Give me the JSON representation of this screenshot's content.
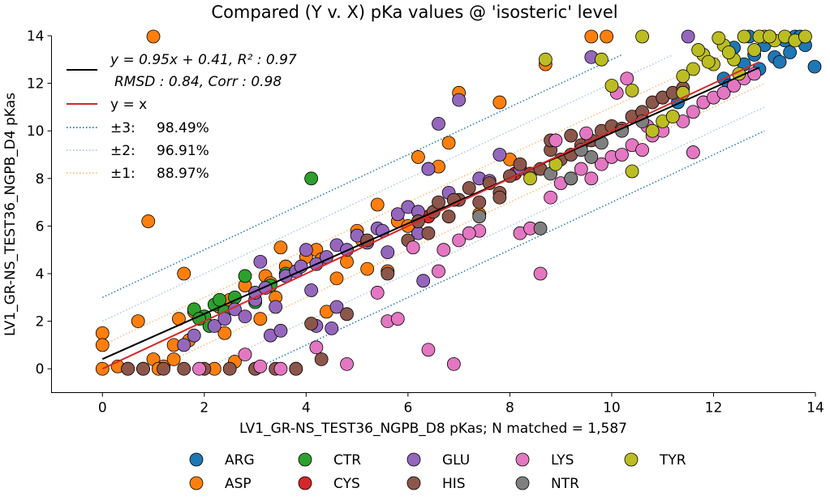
{
  "chart_data": {
    "type": "scatter",
    "title": "Compared (Y v. X) pKa values @ 'isosteric' level",
    "xlabel": "LV1_GR-NS_TEST36_NGPB_D8 pKas; N matched = 1,587",
    "ylabel": "LV1_GR-NS_TEST36_NGPB_D4 pKas",
    "xlim": [
      -1,
      14
    ],
    "ylim": [
      -1,
      14
    ],
    "xticks": [
      0,
      2,
      4,
      6,
      8,
      10,
      12,
      14
    ],
    "yticks": [
      0,
      2,
      4,
      6,
      8,
      10,
      12,
      14
    ],
    "fit_line": {
      "slope": 0.95,
      "intercept": 0.41,
      "x_range": [
        0,
        12.9
      ],
      "color": "#000000"
    },
    "identity_line": {
      "label": "y = x",
      "x_range": [
        0,
        12.9
      ],
      "color": "#d62728"
    },
    "bands": [
      {
        "label": "±3:",
        "percent": "98.49%",
        "offset": 3,
        "color": "#1f77b4"
      },
      {
        "label": "±2:",
        "percent": "96.91%",
        "offset": 2,
        "color": "#aec7e8"
      },
      {
        "label": "±1:",
        "percent": "88.97%",
        "offset": 1,
        "color": "#ffbb78"
      }
    ],
    "legend_stats": {
      "fit_line1": "y = 0.95x + 0.41, R² : 0.97",
      "fit_line2": "RMSD : 0.84, Corr : 0.98",
      "identity": "y = x"
    },
    "series": [
      {
        "name": "ARG",
        "color": "#1f77b4",
        "points": [
          [
            12.6,
            12.8
          ],
          [
            12.8,
            13.2
          ],
          [
            13.0,
            13.6
          ],
          [
            13.2,
            13.1
          ],
          [
            13.4,
            13.8
          ],
          [
            13.6,
            14.0
          ],
          [
            13.8,
            13.6
          ],
          [
            14.0,
            12.7
          ],
          [
            12.2,
            12.2
          ],
          [
            11.8,
            11.2
          ],
          [
            12.4,
            13.5
          ],
          [
            13.1,
            14.0
          ],
          [
            12.9,
            12.6
          ],
          [
            13.5,
            13.3
          ],
          [
            13.7,
            14.0
          ],
          [
            12.3,
            11.9
          ],
          [
            13.3,
            12.9
          ],
          [
            11.3,
            11.2
          ],
          [
            12.7,
            14.0
          ]
        ]
      },
      {
        "name": "ASP",
        "color": "#ff7f0e",
        "points": [
          [
            0,
            0
          ],
          [
            0,
            1.5
          ],
          [
            0,
            1.0
          ],
          [
            0.3,
            0.1
          ],
          [
            0.7,
            2.0
          ],
          [
            0.8,
            0
          ],
          [
            1.0,
            14.0
          ],
          [
            1.0,
            0.4
          ],
          [
            1.2,
            0.1
          ],
          [
            1.4,
            1.0
          ],
          [
            1.4,
            0.4
          ],
          [
            1.5,
            2.1
          ],
          [
            1.6,
            4.0
          ],
          [
            1.7,
            1.2
          ],
          [
            1.8,
            2.4
          ],
          [
            2.0,
            2.2
          ],
          [
            2.2,
            0
          ],
          [
            2.3,
            2.6
          ],
          [
            2.5,
            2.9
          ],
          [
            2.6,
            0.3
          ],
          [
            2.8,
            3.5
          ],
          [
            3.0,
            0
          ],
          [
            3.2,
            3.9
          ],
          [
            3.4,
            3.0
          ],
          [
            3.5,
            5.1
          ],
          [
            3.6,
            4.3
          ],
          [
            3.8,
            0
          ],
          [
            4.0,
            4.7
          ],
          [
            4.2,
            5.0
          ],
          [
            4.4,
            2.4
          ],
          [
            4.6,
            3.8
          ],
          [
            4.8,
            4.5
          ],
          [
            5.0,
            5.8
          ],
          [
            5.2,
            4.2
          ],
          [
            5.4,
            6.9
          ],
          [
            5.6,
            4.1
          ],
          [
            5.8,
            6.2
          ],
          [
            6.0,
            6.0
          ],
          [
            6.2,
            8.9
          ],
          [
            6.4,
            8.4
          ],
          [
            6.6,
            8.5
          ],
          [
            6.8,
            9.5
          ],
          [
            7.0,
            11.6
          ],
          [
            7.4,
            6.5
          ],
          [
            7.8,
            11.2
          ],
          [
            8.0,
            8.8
          ],
          [
            8.7,
            12.8
          ],
          [
            9.6,
            14.0
          ],
          [
            9.9,
            14.0
          ],
          [
            2.4,
            1.5
          ],
          [
            3.1,
            2.1
          ],
          [
            1.1,
            0
          ],
          [
            0.9,
            6.2
          ],
          [
            4.3,
            4.6
          ],
          [
            5.1,
            5.4
          ],
          [
            3.3,
            3.6
          ]
        ]
      },
      {
        "name": "CTR",
        "color": "#2ca02c",
        "points": [
          [
            0.5,
            0
          ],
          [
            1.8,
            2.5
          ],
          [
            2.0,
            2.2
          ],
          [
            2.2,
            2.7
          ],
          [
            2.4,
            2.4
          ],
          [
            2.6,
            3.0
          ],
          [
            2.8,
            3.9
          ],
          [
            3.0,
            2.8
          ],
          [
            3.3,
            3.5
          ],
          [
            3.6,
            4.0
          ],
          [
            4.1,
            8.0
          ],
          [
            2.1,
            1.8
          ],
          [
            1.9,
            2.1
          ],
          [
            2.3,
            2.9
          ]
        ]
      },
      {
        "name": "CYS",
        "color": "#d62728",
        "points": [
          [
            6.4,
            6.4
          ],
          [
            8.1,
            8.2
          ]
        ]
      },
      {
        "name": "GLU",
        "color": "#9467bd",
        "points": [
          [
            1.6,
            1.0
          ],
          [
            1.8,
            1.4
          ],
          [
            2.2,
            1.8
          ],
          [
            2.4,
            2.1
          ],
          [
            2.6,
            2.5
          ],
          [
            2.8,
            2.2
          ],
          [
            3.0,
            2.9
          ],
          [
            3.0,
            3.2
          ],
          [
            3.2,
            3.4
          ],
          [
            3.3,
            1.4
          ],
          [
            3.4,
            2.6
          ],
          [
            3.5,
            1.6
          ],
          [
            3.6,
            3.9
          ],
          [
            3.8,
            4.1
          ],
          [
            4.0,
            5.0
          ],
          [
            4.2,
            4.4
          ],
          [
            4.2,
            1.8
          ],
          [
            4.4,
            4.7
          ],
          [
            4.5,
            1.7
          ],
          [
            4.6,
            5.2
          ],
          [
            4.8,
            5.0
          ],
          [
            5.0,
            5.6
          ],
          [
            5.2,
            5.3
          ],
          [
            5.4,
            5.9
          ],
          [
            5.6,
            4.9
          ],
          [
            5.8,
            6.5
          ],
          [
            6.0,
            6.8
          ],
          [
            6.2,
            6.6
          ],
          [
            6.3,
            3.7
          ],
          [
            6.4,
            8.4
          ],
          [
            6.6,
            10.3
          ],
          [
            6.8,
            7.4
          ],
          [
            7.0,
            11.3
          ],
          [
            7.4,
            8.0
          ],
          [
            7.6,
            7.9
          ],
          [
            7.8,
            9.0
          ],
          [
            8.2,
            8.4
          ],
          [
            9.6,
            13.1
          ],
          [
            10.5,
            10.6
          ],
          [
            11.0,
            11.4
          ],
          [
            11.5,
            14.0
          ],
          [
            6.2,
            5.7
          ],
          [
            5.5,
            5.8
          ],
          [
            3.9,
            4.3
          ],
          [
            4.1,
            3.3
          ],
          [
            4.6,
            2.6
          ],
          [
            3.1,
            4.5
          ]
        ]
      },
      {
        "name": "HIS",
        "color": "#8c564b",
        "points": [
          [
            0.5,
            0
          ],
          [
            0.8,
            0
          ],
          [
            1.2,
            0
          ],
          [
            1.6,
            0
          ],
          [
            2.0,
            0
          ],
          [
            2.5,
            0
          ],
          [
            3.0,
            0
          ],
          [
            3.4,
            0
          ],
          [
            3.8,
            0
          ],
          [
            4.1,
            1.9
          ],
          [
            4.3,
            0.4
          ],
          [
            4.8,
            2.3
          ],
          [
            5.2,
            5.4
          ],
          [
            5.6,
            4.0
          ],
          [
            6.0,
            5.4
          ],
          [
            6.2,
            6.2
          ],
          [
            6.4,
            5.7
          ],
          [
            6.5,
            6.6
          ],
          [
            6.6,
            7.0
          ],
          [
            6.8,
            6.4
          ],
          [
            7.0,
            7.1
          ],
          [
            7.2,
            7.6
          ],
          [
            7.4,
            7.0
          ],
          [
            7.6,
            7.8
          ],
          [
            7.8,
            7.4
          ],
          [
            8.0,
            8.1
          ],
          [
            8.2,
            8.6
          ],
          [
            8.4,
            8.2
          ],
          [
            8.6,
            8.4
          ],
          [
            8.8,
            9.2
          ],
          [
            9.0,
            8.8
          ],
          [
            9.2,
            9.0
          ],
          [
            9.4,
            9.4
          ],
          [
            9.6,
            9.6
          ],
          [
            9.8,
            10.0
          ],
          [
            10.0,
            10.2
          ],
          [
            10.2,
            10.1
          ],
          [
            10.4,
            10.6
          ],
          [
            10.6,
            10.8
          ],
          [
            10.8,
            11.2
          ],
          [
            11.0,
            11.4
          ],
          [
            11.2,
            11.6
          ],
          [
            11.4,
            11.8
          ],
          [
            8.8,
            9.6
          ],
          [
            9.2,
            9.8
          ],
          [
            6.9,
            7.1
          ],
          [
            7.8,
            7.2
          ]
        ]
      },
      {
        "name": "LYS",
        "color": "#e377c2",
        "points": [
          [
            1.9,
            0
          ],
          [
            2.8,
            0.6
          ],
          [
            3.1,
            0.1
          ],
          [
            3.5,
            0
          ],
          [
            4.2,
            0.9
          ],
          [
            4.8,
            0.2
          ],
          [
            5.4,
            3.2
          ],
          [
            5.6,
            2.0
          ],
          [
            5.8,
            2.1
          ],
          [
            6.4,
            0.8
          ],
          [
            6.6,
            4.1
          ],
          [
            6.9,
            0.2
          ],
          [
            7.0,
            5.4
          ],
          [
            7.4,
            5.8
          ],
          [
            8.2,
            5.7
          ],
          [
            8.4,
            5.9
          ],
          [
            8.6,
            4.0
          ],
          [
            8.8,
            7.2
          ],
          [
            9.0,
            7.8
          ],
          [
            9.2,
            8.0
          ],
          [
            9.4,
            8.4
          ],
          [
            9.6,
            8.0
          ],
          [
            9.8,
            8.6
          ],
          [
            10.0,
            8.9
          ],
          [
            10.2,
            9.0
          ],
          [
            10.4,
            9.4
          ],
          [
            10.6,
            9.2
          ],
          [
            10.8,
            9.8
          ],
          [
            11.0,
            10.0
          ],
          [
            11.2,
            10.6
          ],
          [
            11.4,
            10.4
          ],
          [
            11.6,
            10.8
          ],
          [
            11.8,
            11.2
          ],
          [
            12.0,
            11.4
          ],
          [
            12.2,
            11.6
          ],
          [
            12.4,
            11.9
          ],
          [
            12.6,
            12.2
          ],
          [
            12.8,
            12.4
          ],
          [
            11.6,
            9.1
          ],
          [
            10.1,
            11.6
          ],
          [
            10.3,
            12.2
          ],
          [
            8.9,
            9.6
          ],
          [
            7.2,
            5.7
          ],
          [
            6.7,
            5.0
          ],
          [
            6.1,
            5.1
          ],
          [
            9.5,
            9.9
          ],
          [
            10.7,
            10.2
          ]
        ]
      },
      {
        "name": "NTR",
        "color": "#7f7f7f",
        "points": [
          [
            7.4,
            6.4
          ],
          [
            8.6,
            5.9
          ],
          [
            8.8,
            8.2
          ],
          [
            9.2,
            8.0
          ],
          [
            9.6,
            8.9
          ],
          [
            9.8,
            9.5
          ],
          [
            10.2,
            10.0
          ],
          [
            10.6,
            10.4
          ],
          [
            9.4,
            9.2
          ]
        ]
      },
      {
        "name": "TYR",
        "color": "#bcbd22",
        "points": [
          [
            8.4,
            8.0
          ],
          [
            8.7,
            13.0
          ],
          [
            8.9,
            8.6
          ],
          [
            9.8,
            13.0
          ],
          [
            10.0,
            11.9
          ],
          [
            10.4,
            8.3
          ],
          [
            10.4,
            11.7
          ],
          [
            10.6,
            14.0
          ],
          [
            10.8,
            10.0
          ],
          [
            11.0,
            10.4
          ],
          [
            11.2,
            10.6
          ],
          [
            11.4,
            11.6
          ],
          [
            11.6,
            12.6
          ],
          [
            11.8,
            13.2
          ],
          [
            12.0,
            12.8
          ],
          [
            12.2,
            13.6
          ],
          [
            12.4,
            13.0
          ],
          [
            12.6,
            14.0
          ],
          [
            12.8,
            13.4
          ],
          [
            13.0,
            14.0
          ],
          [
            13.2,
            13.8
          ],
          [
            13.4,
            14.0
          ],
          [
            13.6,
            13.8
          ],
          [
            13.8,
            14.0
          ],
          [
            11.4,
            12.3
          ],
          [
            12.1,
            13.9
          ],
          [
            11.9,
            12.9
          ],
          [
            12.9,
            14.0
          ],
          [
            11.7,
            13.4
          ],
          [
            12.5,
            12.4
          ],
          [
            12.3,
            13.3
          ],
          [
            13.1,
            14.0
          ]
        ]
      }
    ]
  }
}
